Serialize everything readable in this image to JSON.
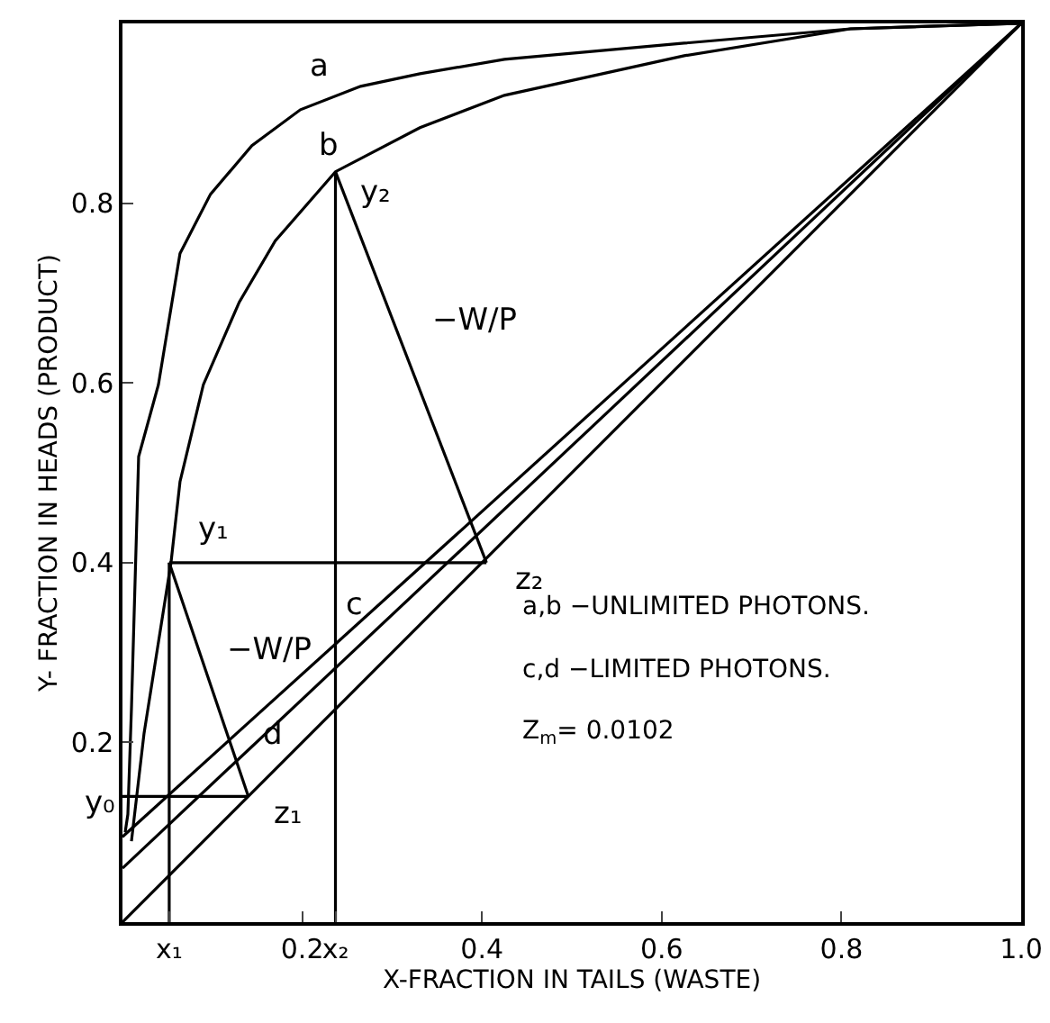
{
  "chart_data": {
    "type": "line",
    "xlabel": "X-FRACTION IN TAILS (WASTE)",
    "ylabel": "Y- FRACTION IN HEADS (PRODUCT)",
    "xlim": [
      0,
      1
    ],
    "ylim": [
      0,
      1
    ],
    "xticks": [
      {
        "value": 0.052,
        "label": "x₁"
      },
      0.2,
      {
        "value": 0.237,
        "label": "x₂"
      },
      0.4,
      0.6,
      0.8,
      {
        "value": 1,
        "label": "1.0"
      }
    ],
    "yticks": [
      0.2,
      0.4,
      0.6,
      0.8
    ],
    "marker": "none",
    "line_style": "solid",
    "series": [
      {
        "color": "#000000",
        "x": [
          0.003,
          0.006,
          0.01,
          0.018,
          0.04,
          0.064,
          0.098,
          0.144,
          0.198,
          0.265,
          0.331,
          0.425,
          0.625,
          0.81,
          1
        ],
        "values": [
          0.1,
          0.12,
          0.238,
          0.518,
          0.598,
          0.744,
          0.81,
          0.864,
          0.904,
          0.93,
          0.944,
          0.96,
          0.978,
          0.994,
          1
        ]
      },
      {
        "color": "#000000",
        "x": [
          0.01,
          0.024,
          0.054,
          0.064,
          0.09,
          0.13,
          0.17,
          0.237,
          0.331,
          0.425,
          0.625,
          0.81,
          1
        ],
        "values": [
          0.09,
          0.21,
          0.4,
          0.49,
          0.598,
          0.69,
          0.758,
          0.835,
          0.884,
          0.92,
          0.964,
          0.994,
          1
        ]
      },
      {
        "color": "#000000",
        "x": [
          0,
          1
        ],
        "values": [
          0,
          1
        ]
      },
      {
        "color": "#000000",
        "x": [
          0,
          1
        ],
        "values": [
          0.06,
          1
        ]
      },
      {
        "color": "#000000",
        "x": [
          0,
          1
        ],
        "values": [
          0.095,
          1
        ]
      },
      {
        "color": "#000000",
        "x": [
          0.052,
          0.052
        ],
        "values": [
          0,
          0.4
        ]
      },
      {
        "color": "#000000",
        "x": [
          0.052,
          0.405
        ],
        "values": [
          0.4,
          0.4
        ]
      },
      {
        "color": "#000000",
        "x": [
          0.052,
          0.14
        ],
        "values": [
          0.4,
          0.14
        ]
      },
      {
        "color": "#000000",
        "x": [
          0,
          0.14
        ],
        "values": [
          0.14,
          0.14
        ]
      },
      {
        "color": "#000000",
        "x": [
          0.237,
          0.237
        ],
        "values": [
          0,
          0.835
        ]
      },
      {
        "color": "#000000",
        "x": [
          0.237,
          0.405
        ],
        "values": [
          0.835,
          0.4
        ]
      }
    ],
    "annotations": [
      {
        "text": "a",
        "x": 0.198,
        "y": 0.904
      },
      {
        "text": "b",
        "x": 0.237,
        "y": 0.835
      },
      {
        "text": "y₂",
        "x": 0.237,
        "y": 0.835
      },
      {
        "text": "−W/P",
        "x": 0.321,
        "y": 0.6175
      },
      {
        "text": "y₁",
        "x": 0.052,
        "y": 0.4
      },
      {
        "text": "−W/P",
        "x": 0.096,
        "y": 0.27
      },
      {
        "text": "c",
        "x": 0.258,
        "y": 0.328
      },
      {
        "text": "d",
        "x": 0.184,
        "y": 0.233
      },
      {
        "text": "y₀",
        "x": 0,
        "y": 0.14
      },
      {
        "text": "z₁",
        "x": 0.14,
        "y": 0.14
      },
      {
        "text": "z₂",
        "x": 0.405,
        "y": 0.4
      },
      "a,b −UNLIMITED PHOTONS.",
      "c,d −LIMITED PHOTONS.",
      "Z$_{m}$= 0.0102"
    ]
  }
}
